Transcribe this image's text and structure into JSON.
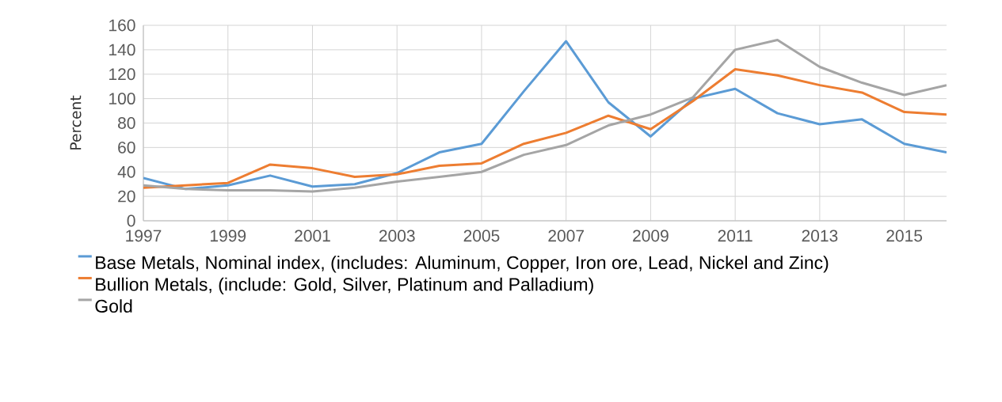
{
  "chart_data": {
    "type": "line",
    "ylabel": "Percent",
    "x": [
      1997,
      1998,
      1999,
      2000,
      2001,
      2002,
      2003,
      2004,
      2005,
      2006,
      2007,
      2008,
      2009,
      2010,
      2011,
      2012,
      2013,
      2014,
      2015,
      2016
    ],
    "xlim": [
      1997,
      2016
    ],
    "xticks": [
      1997,
      1999,
      2001,
      2003,
      2005,
      2007,
      2009,
      2011,
      2013,
      2015
    ],
    "ylim": [
      0,
      160
    ],
    "yticks": [
      0,
      20,
      40,
      60,
      80,
      100,
      120,
      140,
      160
    ],
    "grid": true,
    "legend": "bottom",
    "line_style": "solid",
    "series": [
      {
        "name": "Base Metals, Nominal index, (includes: Aluminum, Copper, Iron ore, Lead, Nickel and Zinc)",
        "color": "#5b9bd5",
        "values": [
          35,
          26,
          29,
          37,
          28,
          30,
          39,
          56,
          63,
          106,
          147,
          97,
          69,
          100,
          108,
          88,
          79,
          83,
          63,
          56
        ]
      },
      {
        "name": "Bullion Metals, (include: Gold, Silver, Platinum and Palladium)",
        "color": "#ed7d31",
        "values": [
          27,
          29,
          31,
          46,
          43,
          36,
          38,
          45,
          47,
          63,
          72,
          86,
          75,
          98,
          124,
          119,
          111,
          105,
          89,
          87
        ]
      },
      {
        "name": "Gold",
        "color": "#a5a5a5",
        "values": [
          29,
          26,
          25,
          25,
          24,
          27,
          32,
          36,
          40,
          54,
          62,
          78,
          87,
          101,
          140,
          148,
          126,
          113,
          103,
          111
        ]
      }
    ]
  }
}
